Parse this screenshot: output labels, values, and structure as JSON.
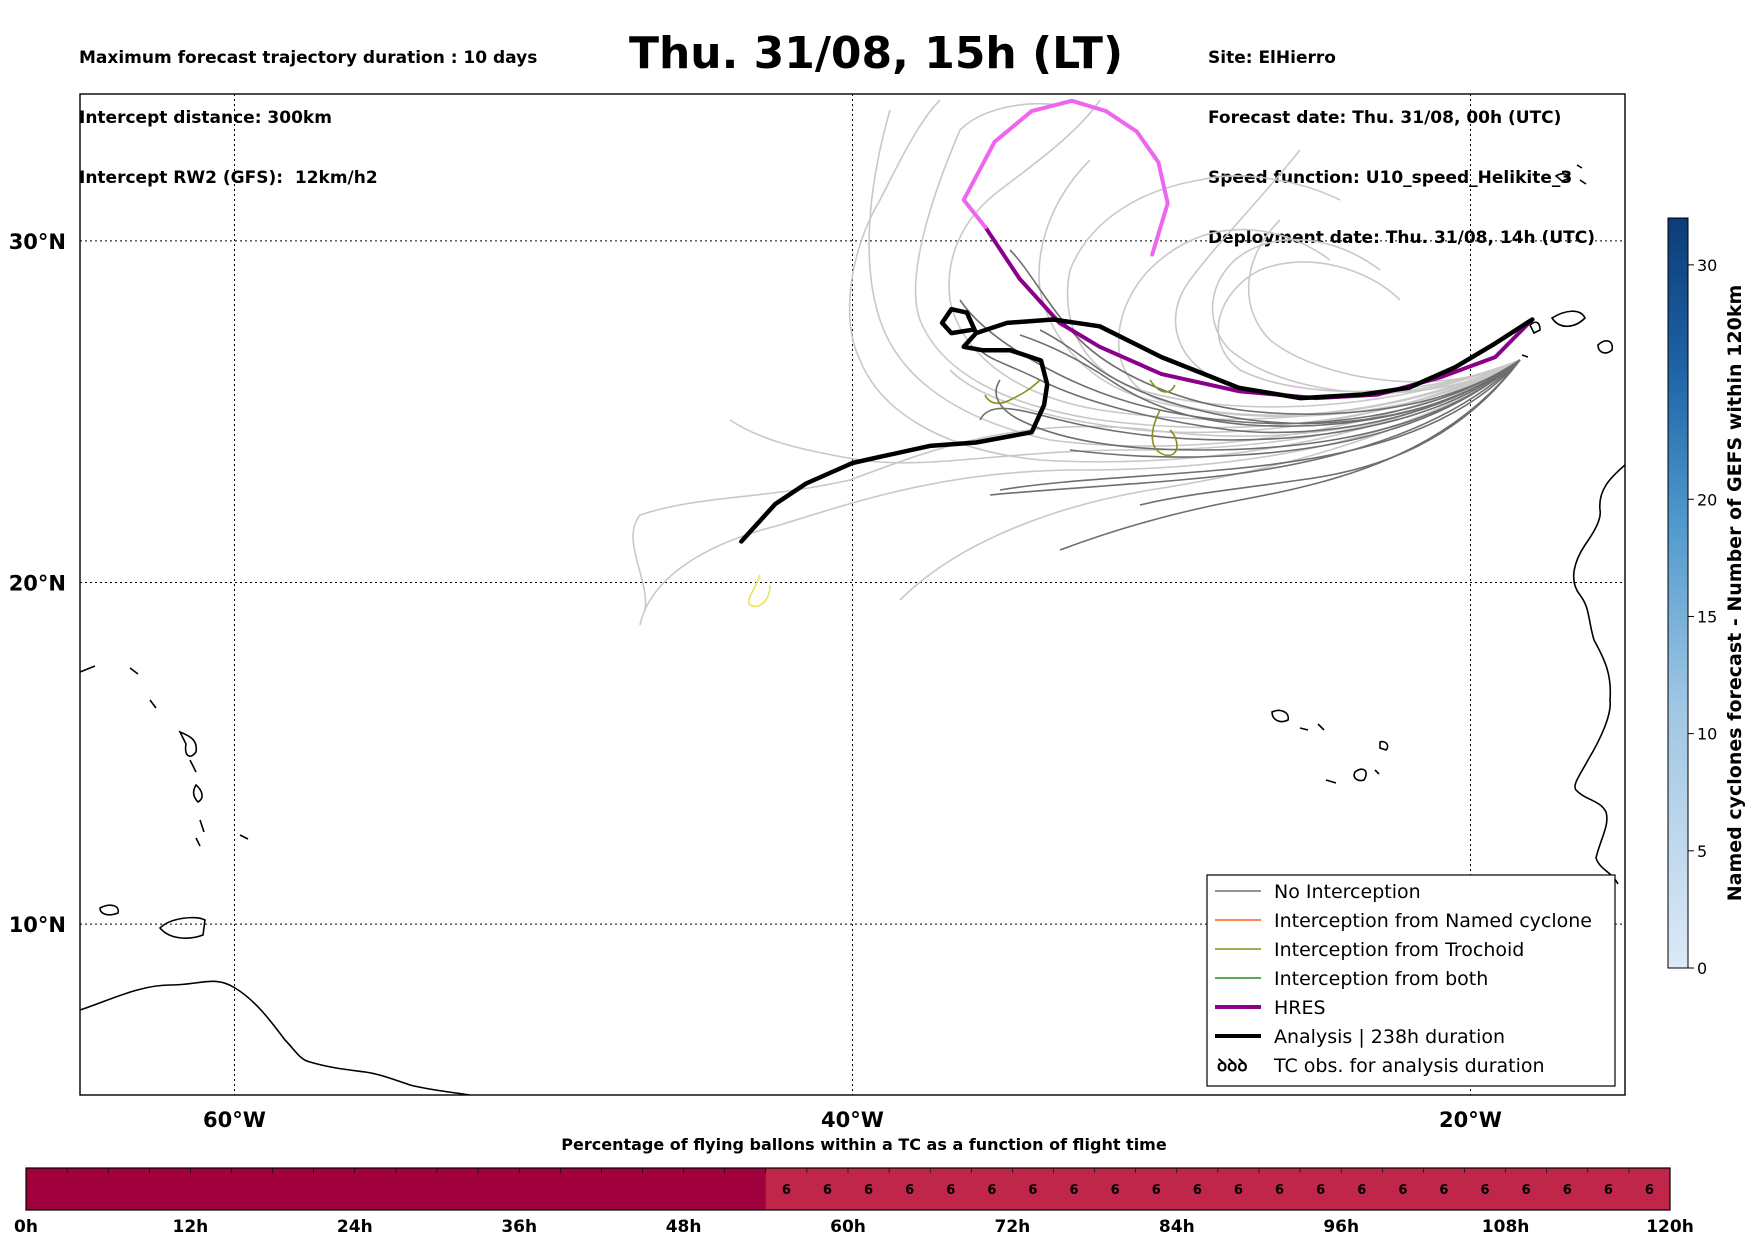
{
  "header": {
    "left": [
      "Maximum forecast trajectory duration : 10 days",
      "Intercept distance: 300km",
      "Intercept RW2 (GFS):  12km/h2"
    ],
    "title": "Thu. 31/08, 15h (LT)",
    "right": [
      "Site: ElHierro",
      "Forecast date: Thu. 31/08, 00h (UTC)",
      "Speed function: U10_speed_Helikite_3",
      "Deployment date: Thu. 31/08, 14h (UTC)"
    ]
  },
  "chart_data": [
    {
      "type": "line",
      "map": {
        "lon_range": [
          -65,
          -15
        ],
        "lat_range": [
          5,
          34.3
        ],
        "x_ticks": [
          {
            "lon": -60,
            "label": "60°W"
          },
          {
            "lon": -40,
            "label": "40°W"
          },
          {
            "lon": -20,
            "label": "20°W"
          }
        ],
        "y_ticks": [
          {
            "lat": 30,
            "label": "30°N"
          },
          {
            "lat": 20,
            "label": "20°N"
          },
          {
            "lat": 10,
            "label": "10°N"
          }
        ],
        "grid": true
      },
      "colors": {
        "no_interception": "#6e6e6e",
        "no_interception_light": "#c8c8c8",
        "named_cyclone": "#ff5a1e",
        "trochoid": "#8c8c1e",
        "trochoid_light": "#e8e850",
        "both": "#228b22",
        "hres": "#8b008b",
        "hres_light": "#ee66ee",
        "analysis": "#000000"
      },
      "legend": {
        "position": "bottom-right",
        "items": [
          {
            "label": "No Interception",
            "key": "no_interception"
          },
          {
            "label": "Interception from Named cyclone",
            "key": "named_cyclone"
          },
          {
            "label": "Interception from Trochoid",
            "key": "trochoid"
          },
          {
            "label": "Interception from both",
            "key": "both"
          },
          {
            "label": "HRES",
            "key": "hres"
          },
          {
            "label": "Analysis | 238h duration",
            "key": "analysis"
          },
          {
            "label": "TC obs. for analysis duration",
            "key": "tc_obs",
            "symbol": "ꝺꝺꝺ"
          }
        ]
      },
      "series": [
        {
          "key": "hres",
          "lonlat": [
            [
              -18.0,
              27.7
            ],
            [
              -19.2,
              26.6
            ],
            [
              -21.0,
              26.0
            ],
            [
              -23.0,
              25.5
            ],
            [
              -25.0,
              25.4
            ],
            [
              -27.5,
              25.6
            ],
            [
              -30.0,
              26.1
            ],
            [
              -32.0,
              26.9
            ],
            [
              -33.3,
              27.6
            ],
            [
              -34.6,
              28.9
            ],
            [
              -35.7,
              30.4
            ]
          ]
        },
        {
          "key": "hres_light",
          "lonlat": [
            [
              -35.7,
              30.4
            ],
            [
              -36.4,
              31.2
            ],
            [
              -35.4,
              32.9
            ],
            [
              -34.2,
              33.8
            ],
            [
              -32.9,
              34.1
            ],
            [
              -31.8,
              33.8
            ],
            [
              -30.8,
              33.2
            ],
            [
              -30.1,
              32.3
            ],
            [
              -29.8,
              31.1
            ],
            [
              -30.3,
              29.6
            ]
          ]
        },
        {
          "key": "analysis",
          "lonlat": [
            [
              -18.0,
              27.7
            ],
            [
              -19.2,
              27.0
            ],
            [
              -20.5,
              26.3
            ],
            [
              -22.0,
              25.7
            ],
            [
              -23.5,
              25.5
            ],
            [
              -25.5,
              25.4
            ],
            [
              -27.5,
              25.7
            ],
            [
              -30.0,
              26.6
            ],
            [
              -32.0,
              27.5
            ],
            [
              -33.5,
              27.7
            ],
            [
              -35.0,
              27.6
            ],
            [
              -36.0,
              27.3
            ],
            [
              -36.4,
              26.9
            ],
            [
              -35.8,
              26.8
            ],
            [
              -34.9,
              26.8
            ],
            [
              -33.9,
              26.5
            ],
            [
              -33.7,
              25.8
            ],
            [
              -33.8,
              25.2
            ],
            [
              -34.2,
              24.4
            ],
            [
              -36.0,
              24.1
            ],
            [
              -37.5,
              24.0
            ],
            [
              -39.0,
              23.7
            ],
            [
              -40.0,
              23.5
            ],
            [
              -41.5,
              22.9
            ],
            [
              -42.5,
              22.3
            ],
            [
              -43.2,
              21.6
            ],
            [
              -43.6,
              21.2
            ]
          ]
        },
        {
          "key": "analysis",
          "lonlat": [
            [
              -36.0,
              27.3
            ],
            [
              -36.3,
              27.9
            ],
            [
              -36.8,
              28.0
            ],
            [
              -37.1,
              27.6
            ],
            [
              -36.8,
              27.3
            ],
            [
              -36.1,
              27.4
            ]
          ]
        }
      ]
    },
    {
      "type": "heatmap",
      "title": "Percentage of flying ballons within a TC as a function of flight time",
      "x_range": [
        0,
        120
      ],
      "x_unit": "h",
      "tick_labels": [
        "0h",
        "12h",
        "24h",
        "36h",
        "48h",
        "60h",
        "72h",
        "84h",
        "96h",
        "108h",
        "120h"
      ],
      "cell_hours": 3,
      "values": [
        0,
        0,
        0,
        0,
        0,
        0,
        0,
        0,
        0,
        0,
        0,
        0,
        0,
        0,
        0,
        0,
        0,
        0,
        6,
        6,
        6,
        6,
        6,
        6,
        6,
        6,
        6,
        6,
        6,
        6,
        6,
        6,
        6,
        6,
        6,
        6,
        6,
        6,
        6,
        6
      ],
      "colorbar_color_low": "#a0003c",
      "colorbar_color_high": "#c0264a"
    },
    {
      "type": "heatmap",
      "title": "Named cyclones forecast - Number of GEFS within 120km",
      "orientation": "vertical",
      "range": [
        0,
        32
      ],
      "tick_labels": [
        "0",
        "5",
        "10",
        "15",
        "20",
        "30"
      ]
    }
  ]
}
